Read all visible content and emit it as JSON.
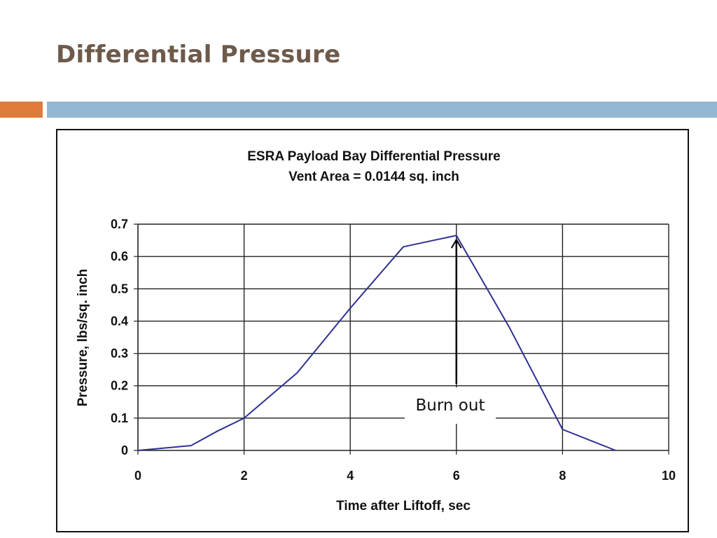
{
  "slide": {
    "title": "Differential Pressure",
    "accent_colors": {
      "left": "#e07b3c",
      "right": "#93b6d2"
    }
  },
  "chart_data": {
    "type": "line",
    "title": "ESRA Payload Bay Differential Pressure",
    "subtitle": "Vent Area = 0.0144 sq. inch",
    "xlabel": "Time after Liftoff, sec",
    "ylabel": "Pressure, lbs/sq. inch",
    "xlim": [
      0,
      10
    ],
    "ylim": [
      0,
      0.7
    ],
    "x_ticks": [
      0,
      2,
      4,
      6,
      8,
      10
    ],
    "x_tick_labels": [
      "0",
      "2",
      "4",
      "6",
      "8",
      "10"
    ],
    "y_ticks": [
      0,
      0.1,
      0.2,
      0.3,
      0.4,
      0.5,
      0.6,
      0.7
    ],
    "y_tick_labels": [
      "0",
      "0.1",
      "0.2",
      "0.3",
      "0.4",
      "0.5",
      "0.6",
      "0.7"
    ],
    "grid": true,
    "line_color": "#2e3192",
    "series": [
      {
        "x": [
          0,
          1,
          1.5,
          2,
          3,
          4,
          5,
          6,
          7,
          8,
          9
        ],
        "y": [
          0,
          0.015,
          0.06,
          0.1,
          0.24,
          0.44,
          0.63,
          0.665,
          0.38,
          0.065,
          0
        ]
      }
    ],
    "annotations": [
      {
        "text": "Burn out",
        "x": 6,
        "y": 0.665
      }
    ]
  }
}
